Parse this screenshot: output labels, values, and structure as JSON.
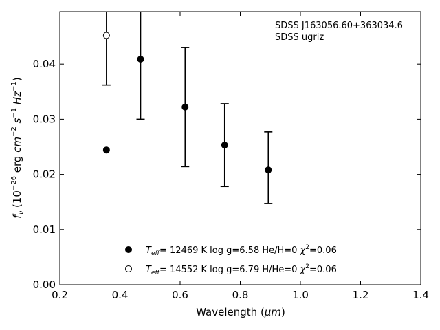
{
  "chart_data": {
    "type": "scatter",
    "title": "",
    "xlabel_main": "Wavelength (",
    "xlabel_unit": "μm",
    "xlabel_close": ")",
    "ylabel_prefix": "f",
    "ylabel_sub": "ν",
    "ylabel_mid1": " (10",
    "ylabel_exp1": "−26",
    "ylabel_mid2": " erg ",
    "ylabel_cm": "cm",
    "ylabel_exp2": "−2",
    "ylabel_s": " s",
    "ylabel_exp3": "−1",
    "ylabel_hz": " Hz",
    "ylabel_exp4": "−1",
    "ylabel_close": ")",
    "xlim": [
      0.2,
      1.4
    ],
    "ylim": [
      0.0,
      0.0495
    ],
    "xticks": [
      0.2,
      0.4,
      0.6,
      0.8,
      1.0,
      1.2,
      1.4
    ],
    "xtick_labels": [
      "0.2",
      "0.4",
      "0.6",
      "0.8",
      "1.0",
      "1.2",
      "1.4"
    ],
    "yticks": [
      0.0,
      0.01,
      0.02,
      0.03,
      0.04
    ],
    "ytick_labels": [
      "0.00",
      "0.01",
      "0.02",
      "0.03",
      "0.04"
    ],
    "grid": false,
    "annotation_lines": [
      "SDSS J163056.60+363034.6",
      "SDSS ugriz"
    ],
    "observed": {
      "x": [
        0.3551,
        0.4686,
        0.6166,
        0.748,
        0.8932
      ],
      "y": [
        0.0497,
        0.0465,
        0.0322,
        0.0253,
        0.0212
      ],
      "yerr": [
        0.0135,
        0.0165,
        0.0108,
        0.0075,
        0.0065
      ]
    },
    "series": [
      {
        "name_T": "T",
        "name_sub": "eff",
        "name_rest": "= 12469 K  log g=6.58  He/H=0  ",
        "name_chi": "χ",
        "name_chi_exp": "2",
        "name_tail": "=0.06",
        "marker": "filled",
        "color": "#000000",
        "x": [
          0.3551,
          0.4686,
          0.6166,
          0.748,
          0.8932
        ],
        "y": [
          0.0244,
          0.0409,
          0.0322,
          0.0253,
          0.0208
        ]
      },
      {
        "name_T": "T",
        "name_sub": "eff",
        "name_rest": "= 14552 K  log g=6.79  H/He=0  ",
        "name_chi": "χ",
        "name_chi_exp": "2",
        "name_tail": "=0.06",
        "marker": "open",
        "color": "#000000",
        "x": [
          0.3551
        ],
        "y": [
          0.0452
        ]
      }
    ]
  }
}
